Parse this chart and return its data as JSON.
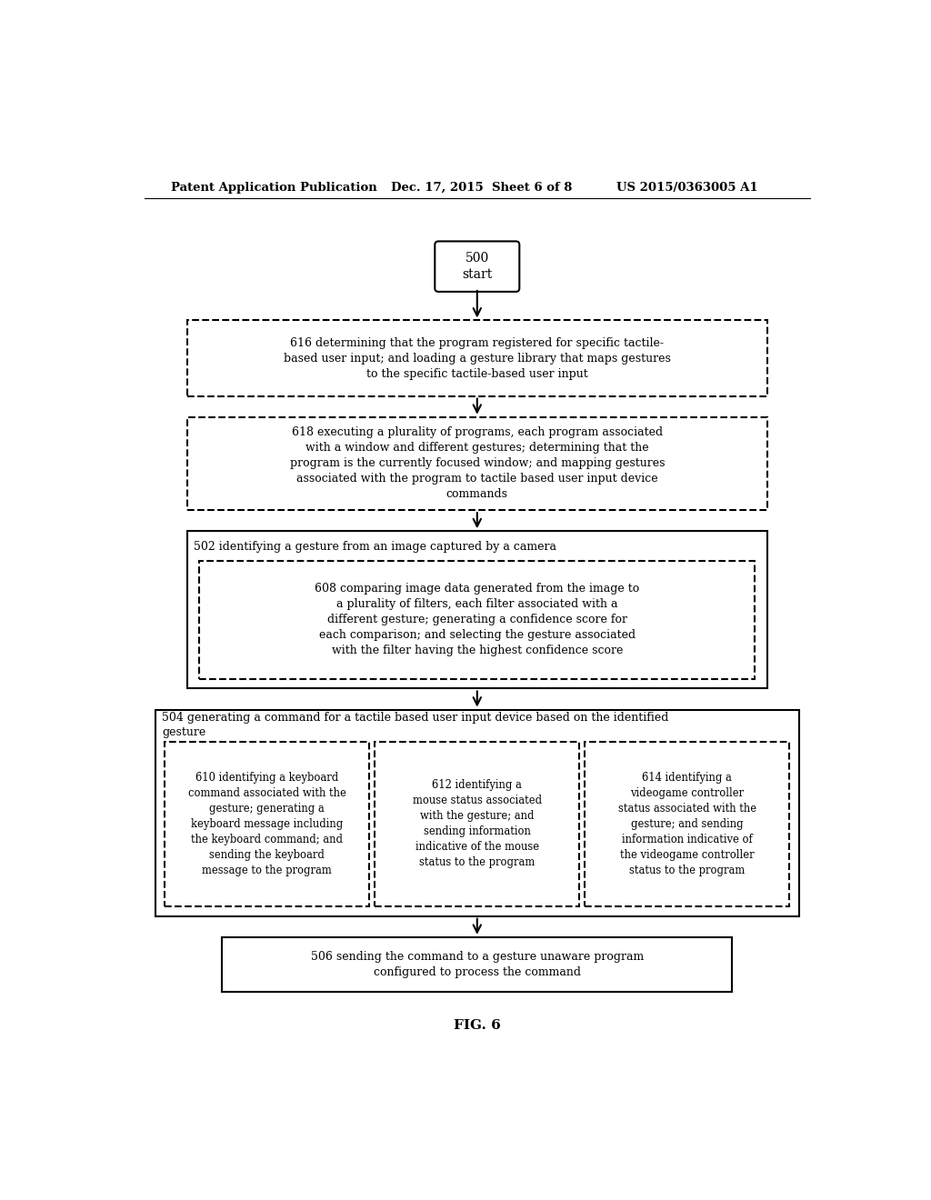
{
  "header_left": "Patent Application Publication",
  "header_mid": "Dec. 17, 2015  Sheet 6 of 8",
  "header_right": "US 2015/0363005 A1",
  "footer": "FIG. 6",
  "box616_text": "616 determining that the program registered for specific tactile-\nbased user input; and loading a gesture library that maps gestures\nto the specific tactile-based user input",
  "box618_text": "618 executing a plurality of programs, each program associated\nwith a window and different gestures; determining that the\nprogram is the currently focused window; and mapping gestures\nassociated with the program to tactile based user input device\ncommands",
  "box502_text": "502 identifying a gesture from an image captured by a camera",
  "box608_text": "608 comparing image data generated from the image to\na plurality of filters, each filter associated with a\ndifferent gesture; generating a confidence score for\neach comparison; and selecting the gesture associated\nwith the filter having the highest confidence score",
  "box504_text": "504 generating a command for a tactile based user input device based on the identified\ngesture",
  "box610_text": "610 identifying a keyboard\ncommand associated with the\ngesture; generating a\nkeyboard message including\nthe keyboard command; and\nsending the keyboard\nmessage to the program",
  "box612_text": "612 identifying a\nmouse status associated\nwith the gesture; and\nsending information\nindicative of the mouse\nstatus to the program",
  "box614_text": "614 identifying a\nvideogame controller\nstatus associated with the\ngesture; and sending\ninformation indicative of\nthe videogame controller\nstatus to the program",
  "box506_text": "506 sending the command to a gesture unaware program\nconfigured to process the command",
  "bg_color": "#ffffff",
  "text_color": "#000000",
  "line_color": "#000000"
}
